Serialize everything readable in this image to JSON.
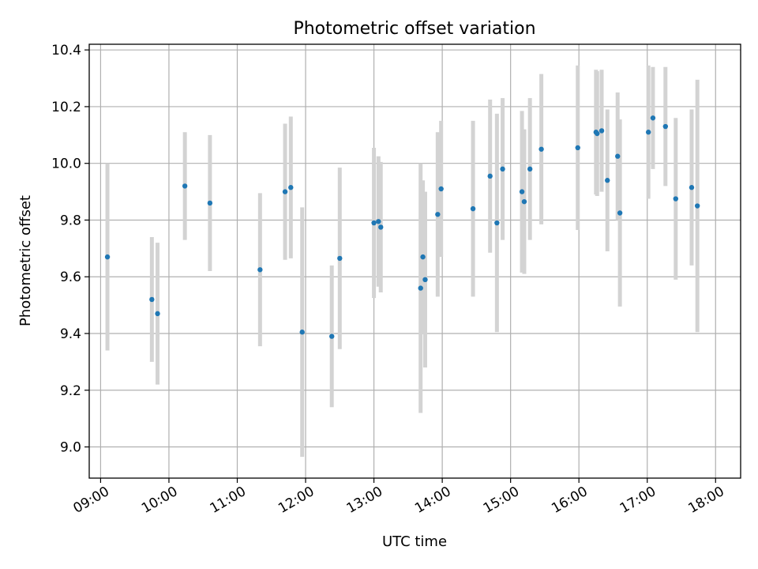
{
  "chart_data": {
    "type": "scatter",
    "title": "Photometric offset variation",
    "xlabel": "UTC time",
    "ylabel": "Photometric offset",
    "xlim": [
      "08:50",
      "18:22"
    ],
    "ylim": [
      8.89,
      10.42
    ],
    "grid": true,
    "colors": {
      "point": "#1f77b4",
      "errorbar": "#d3d3d3",
      "grid": "#b0b0b0"
    },
    "x_ticks": [
      "09:00",
      "10:00",
      "11:00",
      "12:00",
      "13:00",
      "14:00",
      "15:00",
      "16:00",
      "17:00",
      "18:00"
    ],
    "y_ticks": [
      "9.0",
      "9.2",
      "9.4",
      "9.6",
      "9.8",
      "10.0",
      "10.2",
      "10.4"
    ],
    "points": [
      {
        "x": "09:06",
        "y": 9.67,
        "err": 0.33
      },
      {
        "x": "09:45",
        "y": 9.52,
        "err": 0.22
      },
      {
        "x": "09:50",
        "y": 9.47,
        "err": 0.25
      },
      {
        "x": "10:14",
        "y": 9.92,
        "err": 0.19
      },
      {
        "x": "10:36",
        "y": 9.86,
        "err": 0.24
      },
      {
        "x": "11:20",
        "y": 9.625,
        "err": 0.27
      },
      {
        "x": "11:42",
        "y": 9.9,
        "err": 0.24
      },
      {
        "x": "11:47",
        "y": 9.915,
        "err": 0.25
      },
      {
        "x": "11:57",
        "y": 9.405,
        "err": 0.44
      },
      {
        "x": "12:23",
        "y": 9.39,
        "err": 0.25
      },
      {
        "x": "12:30",
        "y": 9.665,
        "err": 0.32
      },
      {
        "x": "13:00",
        "y": 9.79,
        "err": 0.265
      },
      {
        "x": "13:04",
        "y": 9.795,
        "err": 0.23
      },
      {
        "x": "13:06",
        "y": 9.775,
        "err": 0.23
      },
      {
        "x": "13:41",
        "y": 9.56,
        "err": 0.44
      },
      {
        "x": "13:43",
        "y": 9.67,
        "err": 0.27
      },
      {
        "x": "13:45",
        "y": 9.59,
        "err": 0.31
      },
      {
        "x": "13:56",
        "y": 9.82,
        "err": 0.29
      },
      {
        "x": "13:59",
        "y": 9.91,
        "err": 0.24
      },
      {
        "x": "14:27",
        "y": 9.84,
        "err": 0.31
      },
      {
        "x": "14:42",
        "y": 9.955,
        "err": 0.27
      },
      {
        "x": "14:48",
        "y": 9.79,
        "err": 0.385
      },
      {
        "x": "14:53",
        "y": 9.98,
        "err": 0.25
      },
      {
        "x": "15:10",
        "y": 9.9,
        "err": 0.285
      },
      {
        "x": "15:12",
        "y": 9.865,
        "err": 0.255
      },
      {
        "x": "15:17",
        "y": 9.98,
        "err": 0.25
      },
      {
        "x": "15:27",
        "y": 10.05,
        "err": 0.265
      },
      {
        "x": "15:59",
        "y": 10.055,
        "err": 0.29
      },
      {
        "x": "16:15",
        "y": 10.11,
        "err": 0.22
      },
      {
        "x": "16:16",
        "y": 10.105,
        "err": 0.22
      },
      {
        "x": "16:20",
        "y": 10.115,
        "err": 0.215
      },
      {
        "x": "16:25",
        "y": 9.94,
        "err": 0.25
      },
      {
        "x": "16:34",
        "y": 10.025,
        "err": 0.225
      },
      {
        "x": "16:36",
        "y": 9.825,
        "err": 0.33
      },
      {
        "x": "17:01",
        "y": 10.11,
        "err": 0.235
      },
      {
        "x": "17:05",
        "y": 10.16,
        "err": 0.18
      },
      {
        "x": "17:16",
        "y": 10.13,
        "err": 0.21
      },
      {
        "x": "17:25",
        "y": 9.875,
        "err": 0.285
      },
      {
        "x": "17:39",
        "y": 9.915,
        "err": 0.275
      },
      {
        "x": "17:44",
        "y": 9.85,
        "err": 0.445
      }
    ]
  }
}
